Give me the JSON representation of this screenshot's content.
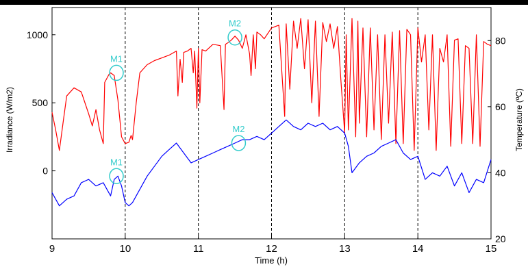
{
  "chart_data": {
    "type": "line",
    "xlabel": "Time (h)",
    "ylabel_left": "Irradiance (W/m2)",
    "ylabel_right": "Temperature (ºC)",
    "xlim": [
      9,
      15
    ],
    "ylim_left": [
      -500,
      1200
    ],
    "ylim_right": [
      20,
      90
    ],
    "x_ticks": [
      "9",
      "10",
      "11",
      "12",
      "13",
      "14",
      "15"
    ],
    "y_ticks_left": [
      "0",
      "500",
      "1000"
    ],
    "y_ticks_right": [
      "20",
      "40",
      "60",
      "80"
    ],
    "grid": "vertical dashed lines at each hour",
    "colors": {
      "irradiance": "#ff0000",
      "temperature": "#0000ff",
      "markers": "#33cccc",
      "top_band": "#000000"
    },
    "series": [
      {
        "axis": "left",
        "color": "#ff0000",
        "x": [
          9.0,
          9.05,
          9.1,
          9.15,
          9.2,
          9.3,
          9.4,
          9.5,
          9.55,
          9.6,
          9.65,
          9.7,
          9.72,
          9.75,
          9.78,
          9.8,
          9.85,
          9.9,
          9.95,
          10.0,
          10.05,
          10.08,
          10.1,
          10.15,
          10.2,
          10.3,
          10.4,
          10.5,
          10.6,
          10.7,
          10.72,
          10.75,
          10.78,
          10.8,
          10.85,
          10.9,
          10.93,
          10.95,
          10.98,
          11.0,
          11.02,
          11.05,
          11.1,
          11.2,
          11.3,
          11.35,
          11.37,
          11.4,
          11.45,
          11.5,
          11.55,
          11.6,
          11.65,
          11.7,
          11.72,
          11.75,
          11.78,
          11.8,
          11.85,
          11.9,
          12.0,
          12.1,
          12.18,
          12.2,
          12.25,
          12.3,
          12.35,
          12.4,
          12.45,
          12.5,
          12.55,
          12.6,
          12.65,
          12.7,
          12.75,
          12.8,
          12.85,
          12.9,
          12.95,
          13.0,
          13.02,
          13.05,
          13.1,
          13.15,
          13.18,
          13.2,
          13.25,
          13.3,
          13.35,
          13.4,
          13.45,
          13.5,
          13.55,
          13.6,
          13.65,
          13.7,
          13.75,
          13.8,
          13.85,
          13.9,
          13.95,
          14.0,
          14.05,
          14.1,
          14.15,
          14.2,
          14.25,
          14.3,
          14.35,
          14.4,
          14.45,
          14.5,
          14.55,
          14.6,
          14.65,
          14.7,
          14.75,
          14.8,
          14.85,
          14.9,
          14.95,
          15.0
        ],
        "y": [
          430,
          300,
          150,
          350,
          550,
          610,
          580,
          420,
          330,
          450,
          300,
          200,
          650,
          680,
          710,
          720,
          700,
          520,
          250,
          200,
          210,
          260,
          230,
          500,
          720,
          780,
          810,
          830,
          850,
          880,
          550,
          820,
          650,
          870,
          880,
          900,
          720,
          880,
          460,
          900,
          500,
          890,
          880,
          930,
          920,
          450,
          930,
          940,
          960,
          990,
          960,
          900,
          1000,
          860,
          700,
          1000,
          750,
          1020,
          1000,
          970,
          1050,
          1070,
          400,
          1080,
          600,
          1100,
          900,
          1120,
          750,
          1110,
          500,
          1100,
          400,
          1090,
          950,
          1080,
          900,
          1060,
          650,
          280,
          1000,
          300,
          1120,
          250,
          1100,
          350,
          1050,
          250,
          1050,
          300,
          1000,
          230,
          1000,
          350,
          1020,
          200,
          1030,
          200,
          1040,
          1000,
          150,
          1050,
          800,
          1000,
          300,
          1000,
          150,
          900,
          800,
          1000,
          180,
          960,
          970,
          200,
          920,
          900,
          200,
          1000,
          180,
          950,
          930,
          920
        ]
      },
      {
        "axis": "right",
        "color": "#0000ff",
        "x": [
          9.0,
          9.1,
          9.2,
          9.3,
          9.4,
          9.5,
          9.6,
          9.7,
          9.8,
          9.85,
          9.9,
          9.95,
          10.0,
          10.05,
          10.1,
          10.2,
          10.3,
          10.4,
          10.5,
          10.6,
          10.7,
          10.8,
          10.9,
          11.0,
          11.1,
          11.2,
          11.3,
          11.4,
          11.5,
          11.6,
          11.7,
          11.8,
          11.9,
          12.0,
          12.1,
          12.2,
          12.3,
          12.4,
          12.5,
          12.6,
          12.7,
          12.8,
          12.9,
          13.0,
          13.05,
          13.1,
          13.2,
          13.3,
          13.4,
          13.5,
          13.6,
          13.7,
          13.8,
          13.9,
          14.0,
          14.1,
          14.2,
          14.3,
          14.4,
          14.5,
          14.6,
          14.7,
          14.8,
          14.9,
          15.0
        ],
        "y": [
          34,
          30,
          32,
          33,
          37,
          38,
          36,
          37,
          33,
          38,
          39,
          36,
          31,
          30,
          31,
          35,
          39,
          42,
          45,
          47,
          49,
          46,
          43,
          44,
          45,
          46,
          47,
          48,
          49,
          50,
          50,
          51,
          50,
          52,
          54,
          56,
          54,
          53,
          55,
          54,
          55,
          53,
          54,
          52,
          48,
          40,
          43,
          45,
          46,
          48,
          49,
          50,
          46,
          44,
          45,
          38,
          40,
          39,
          42,
          36,
          40,
          34,
          38,
          37,
          44
        ]
      }
    ],
    "annotations": [
      {
        "label": "M1",
        "x": 9.88,
        "axis": "left",
        "y": 720
      },
      {
        "label": "M2",
        "x": 11.5,
        "axis": "left",
        "y": 980
      },
      {
        "label": "M1",
        "x": 9.88,
        "axis": "right",
        "y": 39
      },
      {
        "label": "M2",
        "x": 11.55,
        "axis": "right",
        "y": 49
      }
    ]
  }
}
